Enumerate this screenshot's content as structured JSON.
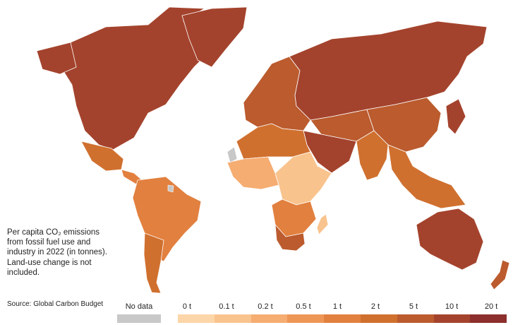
{
  "description": "Per capita CO₂ emissions from fossil fuel use and industry in 2022 (in tonnes). Land-use change is not included.",
  "source": "Source: Global Carbon Budget",
  "legend": {
    "no_data": {
      "label": "No data",
      "color": "#c8c8c8"
    },
    "bins": [
      {
        "label": "0 t",
        "color": "#fcd6a8"
      },
      {
        "label": "0.1 t",
        "color": "#f9c38e"
      },
      {
        "label": "0.2 t",
        "color": "#f5ad72"
      },
      {
        "label": "0.5 t",
        "color": "#ee9656"
      },
      {
        "label": "1 t",
        "color": "#e2803f"
      },
      {
        "label": "2 t",
        "color": "#d0702f"
      },
      {
        "label": "5 t",
        "color": "#bb5b2e"
      },
      {
        "label": "10 t",
        "color": "#a4432d"
      },
      {
        "label": "20 t",
        "color": "#8c2f2d"
      }
    ]
  },
  "map": {
    "ocean_color": "#ffffff",
    "regions": [
      {
        "name": "North America",
        "bin": 7
      },
      {
        "name": "Greenland",
        "bin": 7
      },
      {
        "name": "Mexico",
        "bin": 5
      },
      {
        "name": "Central America",
        "bin": 4
      },
      {
        "name": "South America",
        "bin": 4
      },
      {
        "name": "Chile / Argentina",
        "bin": 5
      },
      {
        "name": "Europe",
        "bin": 6
      },
      {
        "name": "Russia",
        "bin": 7
      },
      {
        "name": "Middle East",
        "bin": 7
      },
      {
        "name": "North Africa",
        "bin": 5
      },
      {
        "name": "West Africa",
        "bin": 2
      },
      {
        "name": "East Africa",
        "bin": 1
      },
      {
        "name": "Southern Africa",
        "bin": 4
      },
      {
        "name": "South Africa",
        "bin": 6
      },
      {
        "name": "Central Asia",
        "bin": 6
      },
      {
        "name": "India",
        "bin": 5
      },
      {
        "name": "China",
        "bin": 6
      },
      {
        "name": "Southeast Asia",
        "bin": 5
      },
      {
        "name": "Japan / Korea",
        "bin": 7
      },
      {
        "name": "Australia",
        "bin": 7
      },
      {
        "name": "New Zealand",
        "bin": 6
      },
      {
        "name": "Madagascar",
        "bin": 1
      }
    ]
  }
}
